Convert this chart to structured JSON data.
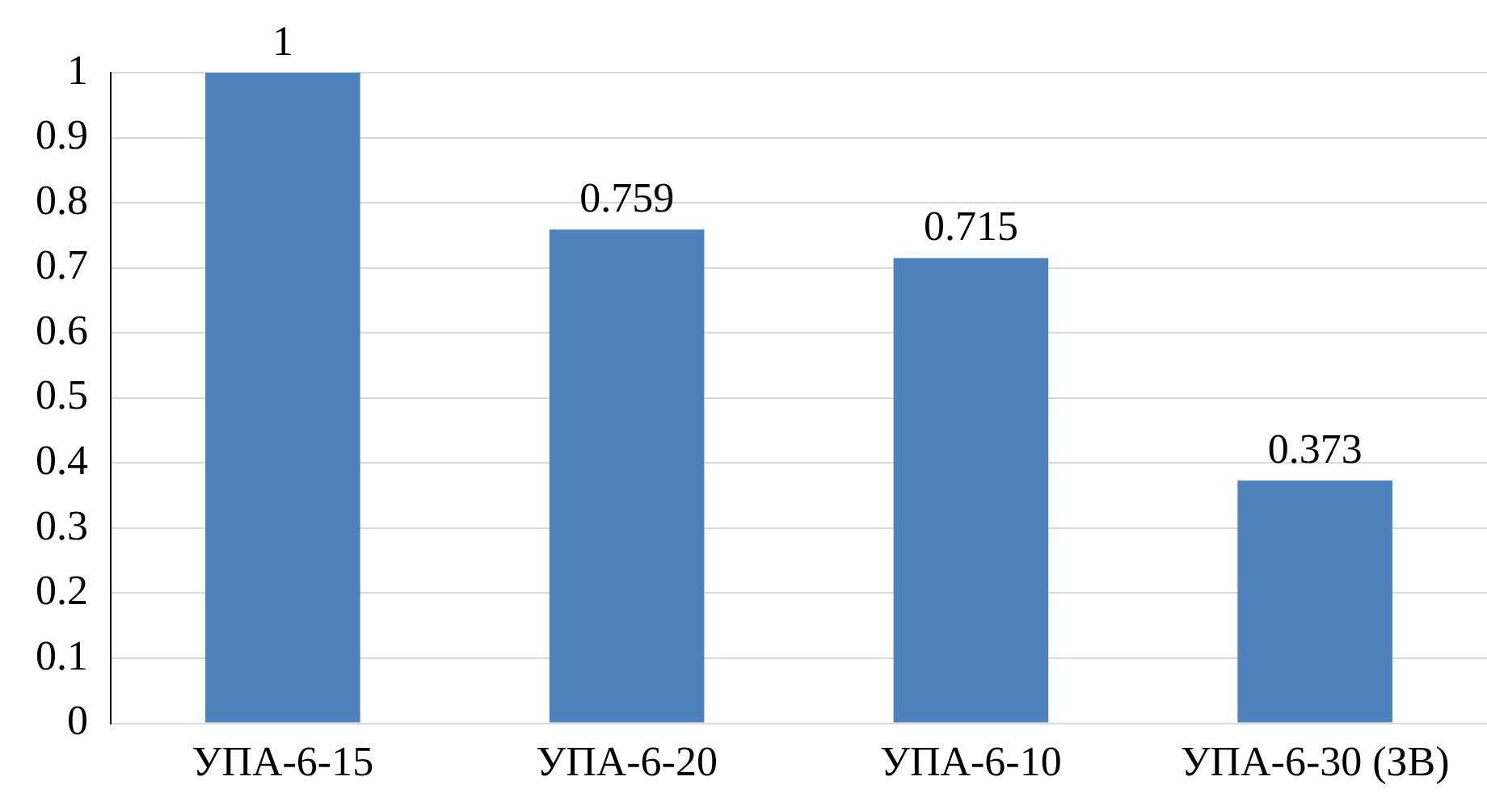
{
  "chart_data": {
    "type": "bar",
    "categories": [
      "УПА-6-15",
      "УПА-6-20",
      "УПА-6-10",
      "УПА-6-30 (ЗВ)"
    ],
    "values": [
      1,
      0.759,
      0.715,
      0.373
    ],
    "color": "#4f81bd",
    "ylim": [
      0,
      1
    ],
    "yticks": [
      0,
      0.1,
      0.2,
      0.3,
      0.4,
      0.5,
      0.6,
      0.7,
      0.8,
      0.9,
      1
    ],
    "grid": "y",
    "data_labels": true
  }
}
